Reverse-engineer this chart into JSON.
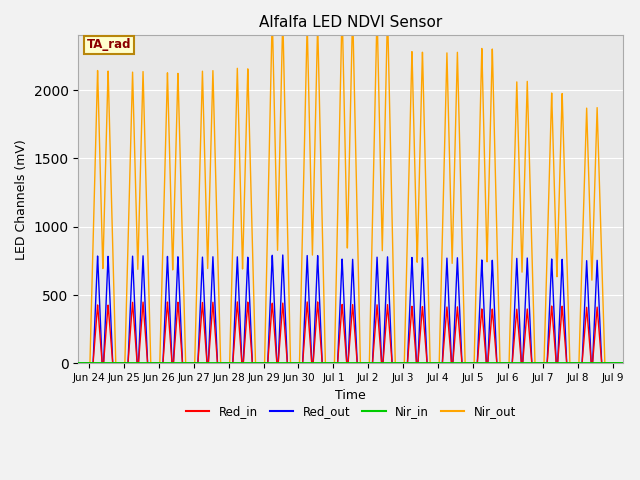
{
  "title": "Alfalfa LED NDVI Sensor",
  "ylabel": "LED Channels (mV)",
  "xlabel": "Time",
  "annotation_text": "TA_rad",
  "annotation_color": "#8B0000",
  "annotation_bg": "#FFFFCC",
  "annotation_border": "#B8860B",
  "ylim": [
    0,
    2400
  ],
  "background_color": "#E8E8E8",
  "grid_color": "#FFFFFF",
  "colors": {
    "Red_in": "#FF0000",
    "Red_out": "#0000FF",
    "Nir_in": "#00CC00",
    "Nir_out": "#FFA500"
  },
  "spikes": [
    {
      "t1": 0.25,
      "t2": 0.55,
      "red_in": 430,
      "red_out": 790,
      "nir_out": 2150
    },
    {
      "t1": 1.25,
      "t2": 1.55,
      "red_in": 450,
      "red_out": 790,
      "nir_out": 2140
    },
    {
      "t1": 2.25,
      "t2": 2.55,
      "red_in": 450,
      "red_out": 785,
      "nir_out": 2130
    },
    {
      "t1": 3.25,
      "t2": 3.55,
      "red_in": 450,
      "red_out": 785,
      "nir_out": 2150
    },
    {
      "t1": 4.25,
      "t2": 4.55,
      "red_in": 450,
      "red_out": 780,
      "nir_out": 2160
    },
    {
      "t1": 5.25,
      "t2": 5.55,
      "red_in": 445,
      "red_out": 800,
      "nir_out": 2550
    },
    {
      "t1": 6.25,
      "t2": 6.55,
      "red_in": 450,
      "red_out": 790,
      "nir_out": 2490
    },
    {
      "t1": 7.25,
      "t2": 7.55,
      "red_in": 435,
      "red_out": 770,
      "nir_out": 2600
    },
    {
      "t1": 8.25,
      "t2": 8.55,
      "red_in": 430,
      "red_out": 780,
      "nir_out": 2580
    },
    {
      "t1": 9.25,
      "t2": 9.55,
      "red_in": 420,
      "red_out": 780,
      "nir_out": 2290
    },
    {
      "t1": 10.25,
      "t2": 10.55,
      "red_in": 415,
      "red_out": 775,
      "nir_out": 2280
    },
    {
      "t1": 11.25,
      "t2": 11.55,
      "red_in": 400,
      "red_out": 760,
      "nir_out": 2310
    },
    {
      "t1": 12.25,
      "t2": 12.55,
      "red_in": 400,
      "red_out": 775,
      "nir_out": 2070
    },
    {
      "t1": 13.25,
      "t2": 13.55,
      "red_in": 420,
      "red_out": 765,
      "nir_out": 1980
    },
    {
      "t1": 14.25,
      "t2": 14.55,
      "red_in": 415,
      "red_out": 760,
      "nir_out": 1880
    }
  ],
  "red_spike_hw": 0.13,
  "nir_spike_hw": 0.22,
  "xtick_labels": [
    "Jun 24",
    "Jun 25",
    "Jun 26",
    "Jun 27",
    "Jun 28",
    "Jun 29",
    "Jun 30",
    "Jul 1",
    "Jul 2",
    "Jul 3",
    "Jul 4",
    "Jul 5",
    "Jul 6",
    "Jul 7",
    "Jul 8",
    "Jul 9"
  ],
  "xtick_positions": [
    0,
    1,
    2,
    3,
    4,
    5,
    6,
    7,
    8,
    9,
    10,
    11,
    12,
    13,
    14,
    15
  ],
  "xlim": [
    -0.3,
    15.3
  ]
}
